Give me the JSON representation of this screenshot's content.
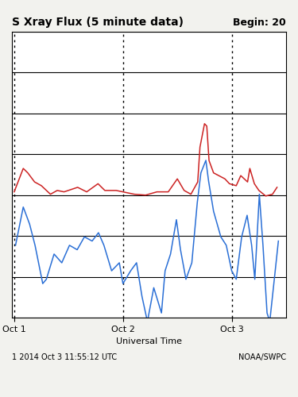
{
  "chart_data": {
    "type": "line",
    "title": "S Xray Flux (5 minute data)",
    "xlabel": "Universal Time",
    "annotations": [
      "Begin: 20",
      "1 2014 Oct 3 11:55:12 UTC",
      "NOAA/SWPC"
    ],
    "log": "y",
    "grid": true,
    "tick_labels": "x",
    "xlim": [
      -0.5,
      60
    ],
    "xticks": [
      {
        "value": 0,
        "label": "Oct 1"
      },
      {
        "value": 24,
        "label": "Oct 2"
      },
      {
        "value": 48,
        "label": "Oct 3"
      }
    ],
    "ylim": [
      1e-09,
      0.01
    ],
    "yticks": [
      1e-09,
      1e-08,
      1e-07,
      1e-06,
      1e-05,
      0.0001,
      0.001,
      0.01
    ],
    "series": [
      {
        "color": "#cc2222",
        "line_style": "solid",
        "x": [
          0,
          2,
          3,
          4.5,
          6,
          8,
          9.5,
          11,
          14,
          16,
          18.5,
          20,
          22.5,
          24,
          26.5,
          29,
          31.5,
          34,
          36,
          37.5,
          39,
          40.5,
          41,
          42,
          42.5,
          43,
          44,
          46.5,
          47.5,
          49,
          50,
          51.5,
          52,
          53,
          54,
          55.5,
          57,
          58
        ],
        "values": [
          1.2e-06,
          4.5e-06,
          3.5e-06,
          2.1e-06,
          1.7e-06,
          1.05e-06,
          1.3e-06,
          1.2e-06,
          1.55e-06,
          1.2e-06,
          1.9e-06,
          1.3e-06,
          1.3e-06,
          1.2e-06,
          1.05e-06,
          1e-06,
          1.2e-06,
          1.2e-06,
          2.5e-06,
          1.3e-06,
          1.05e-06,
          2.1e-06,
          1.5e-05,
          5.6e-05,
          4.9e-05,
          7e-06,
          3.5e-06,
          2.5e-06,
          1.9e-06,
          1.7e-06,
          3e-06,
          2.1e-06,
          4.5e-06,
          1.9e-06,
          1.3e-06,
          9.5e-07,
          1.05e-06,
          1.55e-06
        ]
      },
      {
        "color": "#2a6fd6",
        "line_style": "solid",
        "x": [
          0.3,
          2,
          3.4,
          4.6,
          6.3,
          7.1,
          8.8,
          10.5,
          12.2,
          13.9,
          15.5,
          17.2,
          18.6,
          19.8,
          21.5,
          23.2,
          24,
          25.7,
          27,
          28.2,
          29.4,
          30.8,
          32.5,
          33.3,
          34.5,
          35.8,
          36.7,
          37.9,
          39.2,
          40.4,
          41.2,
          42.3,
          42.9,
          44,
          45.6,
          46.8,
          48,
          49,
          50.2,
          51.4,
          52.4,
          53.1,
          54.1,
          54.9,
          55.8,
          56.4,
          57.5,
          58.3
        ],
        "values": [
          5.9e-08,
          5.1e-07,
          1.95e-07,
          5.9e-08,
          6.8e-09,
          8.7e-09,
          3.6e-08,
          2.2e-08,
          5.9e-08,
          4.6e-08,
          9.5e-08,
          7.5e-08,
          1.2e-07,
          5.9e-08,
          1.4e-08,
          2.2e-08,
          6.8e-09,
          1.4e-08,
          2.2e-08,
          3.3e-09,
          8e-10,
          5.4e-09,
          1.3e-09,
          1.4e-08,
          3.6e-08,
          2.5e-07,
          4.6e-08,
          8.7e-09,
          2.2e-08,
          6.5e-07,
          3.5e-06,
          7.1e-06,
          2.2e-06,
          4e-07,
          9.5e-08,
          5.9e-08,
          1.4e-08,
          8.7e-09,
          9.5e-08,
          3.2e-07,
          5.9e-08,
          8.7e-09,
          1.05e-06,
          5.9e-08,
          1.3e-09,
          8e-10,
          1.1e-08,
          7.5e-08
        ]
      }
    ]
  }
}
